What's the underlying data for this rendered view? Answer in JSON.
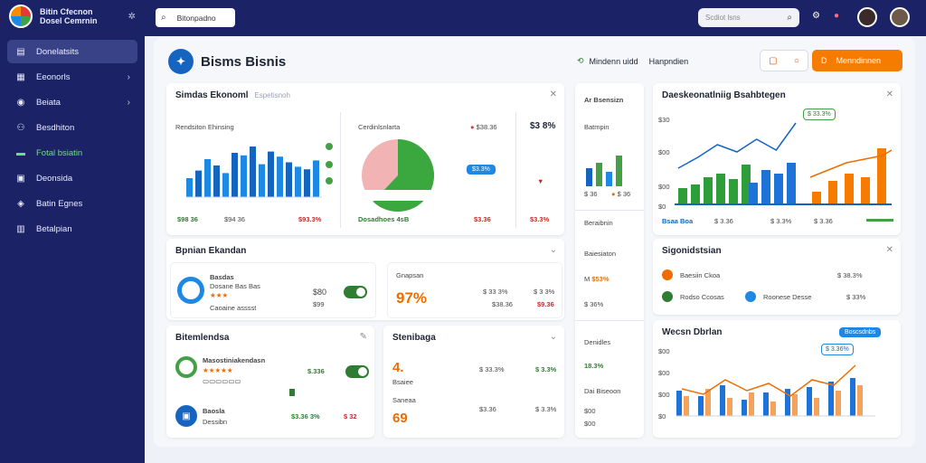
{
  "sidebar": {
    "brand_line1": "Bitin Cfecnon",
    "brand_line2": "Dosel Cemrnin",
    "items": [
      {
        "label": "Donelatsits",
        "icon": "dashboard-icon",
        "glyph": "▤"
      },
      {
        "label": "Eeonorls",
        "icon": "grid-icon",
        "glyph": "▦"
      },
      {
        "label": "Beiata",
        "icon": "shield-icon",
        "glyph": "◉"
      },
      {
        "label": "Besdhiton",
        "icon": "people-icon",
        "glyph": "⚇"
      },
      {
        "label": "Fotal bsiatin",
        "icon": "truck-icon",
        "glyph": "▬"
      },
      {
        "label": "Deonsida",
        "icon": "document-icon",
        "glyph": "▣"
      },
      {
        "label": "Batin Egnes",
        "icon": "lock-icon",
        "glyph": "◈"
      },
      {
        "label": "Betalpian",
        "icon": "chart-icon",
        "glyph": "▥"
      }
    ]
  },
  "topbar": {
    "search_text": "Bitonpadno",
    "search2_text": "Scdiot lsns"
  },
  "header": {
    "title": "Bisms Bisnis",
    "link_text": "Mindenn uidd",
    "link_text2": "Hanpndien",
    "button_outline": "D",
    "button_primary": "Menndinnen",
    "button_primary_icon": "D"
  },
  "card1": {
    "title": "Simdas Ekonoml",
    "subtitle": "Espetisnoh",
    "chart1_label": "Rendsiton Ehinsing",
    "chart1_foot_left": "$98 36",
    "chart1_foot_mid": "$94 36",
    "chart1_foot_right": "$93.3%",
    "chart1_values": [
      30,
      42,
      60,
      50,
      38,
      70,
      66,
      80,
      52,
      72,
      64,
      55,
      48,
      44,
      58
    ],
    "chart1_colors": [
      "#1e88e5",
      "#1565c0",
      "#1e88e5",
      "#1565c0",
      "#1e88e5",
      "#1565c0",
      "#1e88e5",
      "#1565c0",
      "#1e88e5",
      "#1565c0",
      "#1e88e5",
      "#1565c0",
      "#1e88e5",
      "#1565c0",
      "#1e88e5"
    ],
    "gauge_label": "Cerdinlsnlarta",
    "gauge_value_pct": 0.62,
    "gauge_right_label": "$38.36",
    "gauge_foot_left": "Dosadhoes 4sB",
    "gauge_foot_right": "$3.36",
    "tag_label": "$3.3%",
    "right_label": "$3.3%",
    "right_value": "$3 8%",
    "right_foot": "$3.3%"
  },
  "card2": {
    "title": "Bpnian Ekandan",
    "name": "Basdas",
    "sub": "Dosane Bas Bas",
    "sub2": "Caoaine asssst",
    "value1": "$80",
    "value2": "$99",
    "percent_label": "Gnapsan",
    "percent": "97%",
    "v1": "$ 33 3%",
    "v2": "$38.36",
    "v3": "$ 3 3%",
    "v4": "$9.36"
  },
  "card3": {
    "title": "Bitemlendsa",
    "name": "Masostiniakendasn",
    "stars": "★★★★★",
    "value": "$.336",
    "sub": "Baosla",
    "sub2": "Dessibn",
    "footer_left": "$3.36 3%",
    "footer_right": "$ 32"
  },
  "card4": {
    "title": "Stenibaga",
    "big": "4.",
    "big2": "69",
    "sub": "Bsaiee",
    "sub2": "Saneaa",
    "v1": "$ 33.3%",
    "v2": "$ 3.3%",
    "v3": "$3.36",
    "v4": "$ 3.3%"
  },
  "card5": {
    "title": "Ar Bsensizn",
    "label": "Batmpin",
    "bars": [
      20,
      26,
      16,
      34
    ],
    "foot1": "$ 36",
    "foot2": "$ 36",
    "l2": "Beraibnin",
    "l3": "Baiesiaton",
    "v3": "$53%",
    "v4": "$ 36%",
    "l5": "Denidles",
    "v5": "18.3%",
    "l6": "Dai Biseoon",
    "v6": "$00",
    "v7": "$00"
  },
  "card6": {
    "title": "Daeskeonatlniig Bsahbtegen",
    "tag": "$ 33.3%",
    "legend1": "Bsaa Boa",
    "legend2": "$ 3.36",
    "legend3": "$ 3.3%",
    "legend4": "$ 3.36",
    "green_bars": [
      18,
      22,
      30,
      34,
      28,
      44
    ],
    "blue_bars": [
      24,
      38,
      34,
      46
    ],
    "orange_bars": [
      14,
      26,
      34,
      30,
      62
    ],
    "line_values": [
      40,
      52,
      66,
      58,
      72,
      60,
      90
    ],
    "y_labels": [
      "$30",
      "$00",
      "$00",
      "$0"
    ]
  },
  "card7": {
    "title": "Sigonidstsian",
    "row1": "Baesiin Ckoa",
    "row2": "Rodso Ccosas",
    "row3": "Roonese Desse",
    "v1": "$ 38.3%",
    "v2": "$ 33%",
    "dot_colors": [
      "#ef6c00",
      "#2e7d32",
      "#1e88e5"
    ]
  },
  "card8": {
    "title": "Wecsn Dbrlan",
    "pill": "Boscsdnbs",
    "tag": "$ 3.36%",
    "values_blue": [
      28,
      22,
      34,
      18,
      26,
      30,
      32,
      38,
      42
    ],
    "values_orange": [
      22,
      30,
      20,
      26,
      16,
      24,
      20,
      28,
      34
    ],
    "line_values": [
      30,
      24,
      40,
      28,
      36,
      22,
      40,
      34,
      56
    ],
    "y_labels": [
      "$00",
      "$00",
      "$00",
      "$0"
    ]
  }
}
